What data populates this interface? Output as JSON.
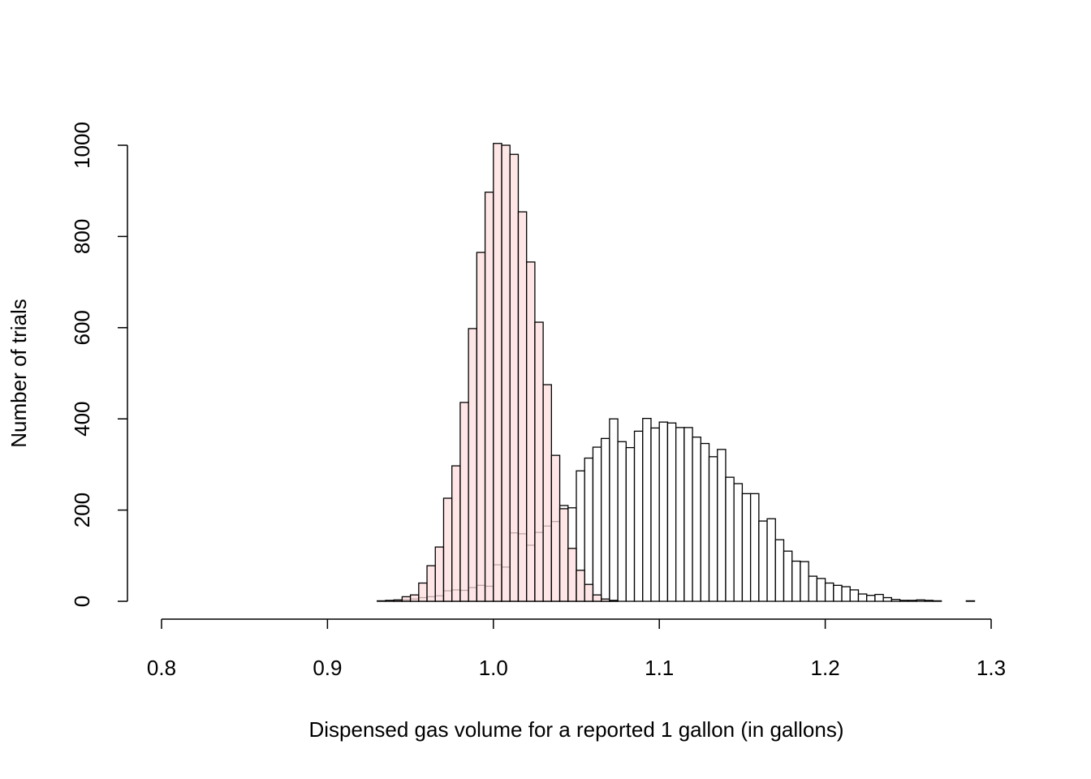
{
  "chart_data": {
    "type": "histogram",
    "x_label": "Dispensed gas volume for a reported 1 gallon (in gallons)",
    "y_label": "Number of trials",
    "bins": [
      0.8,
      0.805,
      0.81,
      0.815,
      0.82,
      0.825,
      0.83,
      0.835,
      0.84,
      0.845,
      0.85,
      0.855,
      0.86,
      0.865,
      0.87,
      0.875,
      0.88,
      0.885,
      0.89,
      0.895,
      0.9,
      0.905,
      0.91,
      0.915,
      0.92,
      0.925,
      0.93,
      0.935,
      0.94,
      0.945,
      0.95,
      0.955,
      0.96,
      0.965,
      0.97,
      0.975,
      0.98,
      0.985,
      0.99,
      0.995,
      1.0,
      1.005,
      1.01,
      1.015,
      1.02,
      1.025,
      1.03,
      1.035,
      1.04,
      1.045,
      1.05,
      1.055,
      1.06,
      1.065,
      1.07,
      1.075,
      1.08,
      1.085,
      1.09,
      1.095,
      1.1,
      1.105,
      1.11,
      1.115,
      1.12,
      1.125,
      1.13,
      1.135,
      1.14,
      1.145,
      1.15,
      1.155,
      1.16,
      1.165,
      1.17,
      1.175,
      1.18,
      1.185,
      1.19,
      1.195,
      1.2,
      1.205,
      1.21,
      1.215,
      1.22,
      1.225,
      1.23,
      1.235,
      1.24,
      1.245,
      1.25,
      1.255,
      1.26,
      1.265,
      1.27,
      1.275,
      1.28,
      1.285,
      1.29,
      1.295,
      1.3
    ],
    "series": [
      {
        "color": "#ffffff",
        "values": [
          0,
          0,
          0,
          0,
          0,
          0,
          0,
          0,
          0,
          0,
          0,
          0,
          0,
          0,
          0,
          0,
          0,
          0,
          0,
          0,
          0,
          0,
          0,
          0,
          0,
          0,
          0,
          0,
          1,
          3,
          5,
          8,
          10,
          12,
          23,
          25,
          24,
          30,
          35,
          33,
          80,
          75,
          150,
          148,
          123,
          151,
          165,
          175,
          210,
          205,
          286,
          314,
          338,
          357,
          400,
          350,
          337,
          373,
          401,
          380,
          393,
          391,
          381,
          381,
          360,
          346,
          317,
          333,
          272,
          258,
          236,
          236,
          176,
          181,
          135,
          110,
          88,
          87,
          55,
          50,
          40,
          35,
          32,
          25,
          16,
          13,
          15,
          8,
          4,
          2,
          2,
          3,
          2,
          1,
          0,
          0,
          0,
          1,
          0,
          0
        ]
      },
      {
        "color": "#ffdede",
        "values": [
          0,
          0,
          0,
          0,
          0,
          0,
          0,
          0,
          0,
          0,
          0,
          0,
          0,
          0,
          0,
          0,
          0,
          0,
          0,
          0,
          0,
          0,
          0,
          0,
          0,
          0,
          1,
          2,
          3,
          10,
          14,
          40,
          78,
          119,
          226,
          297,
          436,
          598,
          765,
          897,
          1004,
          1000,
          980,
          854,
          744,
          612,
          475,
          320,
          203,
          116,
          68,
          37,
          14,
          5,
          2,
          0,
          0,
          0,
          0,
          0,
          0,
          0,
          0,
          0,
          0,
          0,
          0,
          0,
          0,
          0,
          0,
          0,
          0,
          0,
          0,
          0,
          0,
          0,
          0,
          0,
          0,
          0,
          0,
          0,
          0,
          0,
          0,
          0,
          0,
          0,
          0,
          0,
          0,
          0,
          0,
          0,
          0,
          0,
          0,
          0
        ]
      }
    ],
    "xlim": [
      0.8,
      1.3
    ],
    "xticks": [
      0.8,
      0.9,
      {
        "value": 1,
        "label": "1.0"
      },
      1.1,
      1.2,
      1.3
    ],
    "ylim": [
      0,
      1000
    ],
    "yticks": [
      0,
      200,
      400,
      600,
      800,
      1000
    ]
  }
}
